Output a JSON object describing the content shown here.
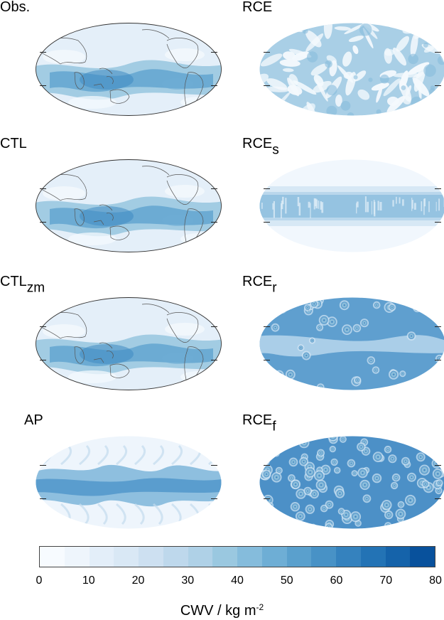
{
  "panels": [
    {
      "id": "obs",
      "title": "Obs.",
      "subscript": "",
      "style": "earth",
      "coastlines": true
    },
    {
      "id": "rce",
      "title": "RCE",
      "subscript": "",
      "style": "patchy",
      "coastlines": false
    },
    {
      "id": "ctl",
      "title": "CTL",
      "subscript": "",
      "style": "earth",
      "coastlines": true
    },
    {
      "id": "rce-s",
      "title": "RCE",
      "subscript": "s",
      "style": "band",
      "coastlines": false
    },
    {
      "id": "ctl-zm",
      "title": "CTL",
      "subscript": "zm",
      "style": "earth",
      "coastlines": true
    },
    {
      "id": "rce-r",
      "title": "RCE",
      "subscript": "r",
      "style": "vortex-sparse",
      "coastlines": false
    },
    {
      "id": "ap",
      "title": "AP",
      "subscript": "",
      "style": "aquaplanet",
      "coastlines": false
    },
    {
      "id": "rce-f",
      "title": "RCE",
      "subscript": "f",
      "style": "vortex-dense",
      "coastlines": false
    }
  ],
  "colorbar": {
    "min": 0,
    "max": 80,
    "step": 5,
    "tick_labels": [
      "0",
      "10",
      "20",
      "30",
      "40",
      "50",
      "60",
      "70",
      "80"
    ],
    "label": "CWV / kg m",
    "label_exponent": "-2",
    "colors": [
      "#f7fbff",
      "#eef5fc",
      "#e3eef9",
      "#d9e8f5",
      "#cde0f1",
      "#bed8ec",
      "#afd1e7",
      "#9ac8e0",
      "#85bcdc",
      "#6eaed5",
      "#5aa0cd",
      "#4892c6",
      "#3582be",
      "#2373b5",
      "#1563aa",
      "#08519c"
    ]
  }
}
